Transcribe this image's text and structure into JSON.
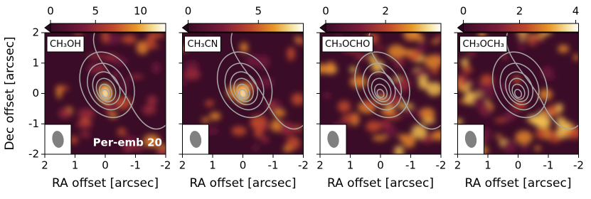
{
  "chart_data": [
    {
      "type": "heatmap",
      "title": "CH₃OH",
      "annotation": "Per-emb 20",
      "xlabel": "RA offset [arcsec]",
      "ylabel": "Dec offset [arcsec]",
      "xlim": [
        2,
        -2
      ],
      "ylim": [
        -2,
        2
      ],
      "xticks": [
        2,
        1,
        0,
        -1,
        -2
      ],
      "yticks": [
        -2,
        -1,
        0,
        1,
        2
      ],
      "clim": [
        0,
        12.8
      ],
      "cticks": [
        0,
        5,
        10
      ]
    },
    {
      "type": "heatmap",
      "title": "CH₃CN",
      "xlabel": "RA offset [arcsec]",
      "xlim": [
        2,
        -2
      ],
      "ylim": [
        -2,
        2
      ],
      "xticks": [
        2,
        1,
        0,
        -1,
        -2
      ],
      "yticks": [
        -2,
        -1,
        0,
        1,
        2
      ],
      "clim": [
        0,
        8.2
      ],
      "cticks": [
        0,
        5
      ]
    },
    {
      "type": "heatmap",
      "title": "CH₃OCHO",
      "xlabel": "RA offset [arcsec]",
      "xlim": [
        2,
        -2
      ],
      "ylim": [
        -2,
        2
      ],
      "xticks": [
        2,
        1,
        0,
        -1,
        -2
      ],
      "yticks": [
        -2,
        -1,
        0,
        1,
        2
      ],
      "clim": [
        0,
        3.85
      ],
      "cticks": [
        0,
        2
      ]
    },
    {
      "type": "heatmap",
      "title": "CH₃OCH₃",
      "xlabel": "RA offset [arcsec]",
      "xlim": [
        2,
        -2
      ],
      "ylim": [
        -2,
        2
      ],
      "xticks": [
        2,
        1,
        0,
        -1,
        -2
      ],
      "yticks": [
        -2,
        -1,
        0,
        1,
        2
      ],
      "clim": [
        0,
        4.1
      ],
      "cticks": [
        0,
        2,
        4
      ]
    }
  ]
}
